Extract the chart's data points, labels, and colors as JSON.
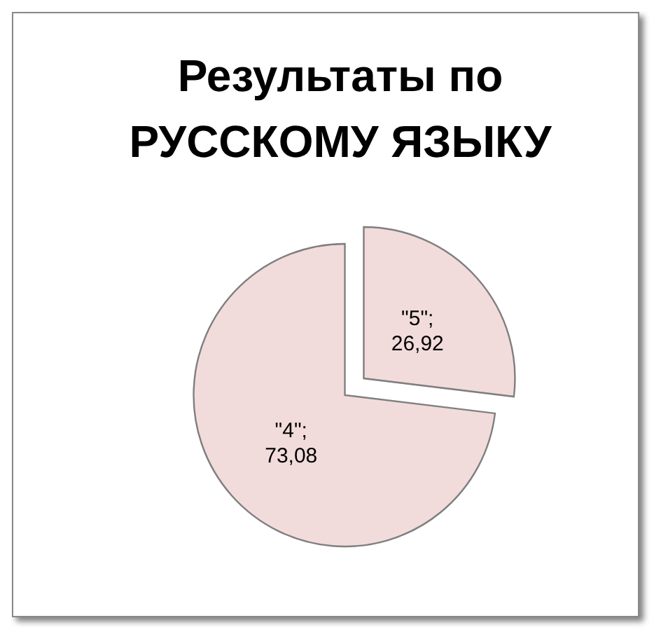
{
  "chart_data": {
    "type": "pie",
    "title": "Результаты по\nРУССКОМУ ЯЗЫКУ",
    "categories": [
      "\"4\"",
      "\"5\""
    ],
    "values": [
      73.08,
      26.92
    ],
    "value_labels": [
      ";\n73,08",
      ";\n26,92"
    ],
    "colors": [
      "#f2dcdb",
      "#f2dcdb"
    ]
  }
}
